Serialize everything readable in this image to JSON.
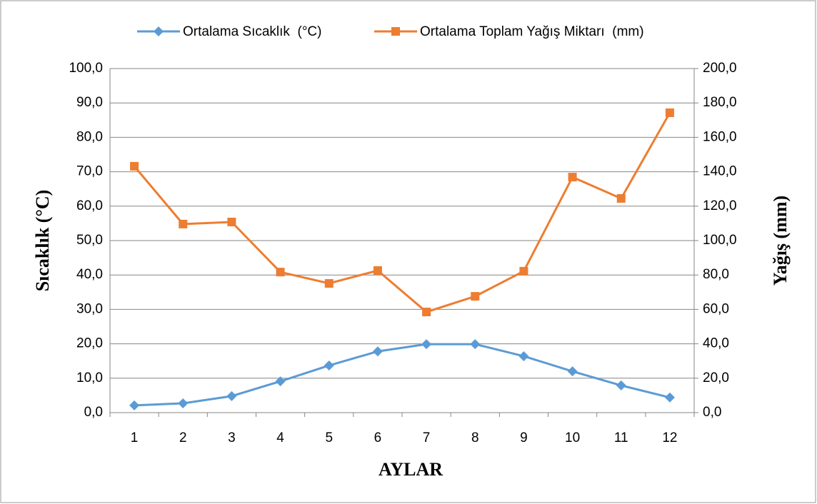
{
  "chart_data": {
    "type": "line",
    "x_label": "AYLAR",
    "y_label": "Sıcaklık (°C)",
    "y2_label": "Yağış (mm)",
    "categories": [
      "1",
      "2",
      "3",
      "4",
      "5",
      "6",
      "7",
      "8",
      "9",
      "10",
      "11",
      "12"
    ],
    "series": [
      {
        "name": "Ortalama Sıcaklık  (°C)",
        "color": "#5b9bd5",
        "marker": "diamond",
        "values": [
          2.1,
          2.7,
          4.8,
          9.1,
          13.7,
          17.8,
          19.9,
          19.9,
          16.4,
          12.0,
          7.9,
          4.4
        ]
      },
      {
        "name": "Ortalama Toplam Yağış Miktarı  (mm)",
        "color": "#ed7d31",
        "marker": "square",
        "axis": "y2",
        "values": [
          143.2,
          109.6,
          110.8,
          81.7,
          75.1,
          82.6,
          58.5,
          67.6,
          82.2,
          136.9,
          124.5,
          174.3
        ]
      }
    ],
    "ylim": [
      0,
      100
    ],
    "yticks": [
      {
        "value": 0,
        "label": "0,0"
      },
      {
        "value": 10,
        "label": "10,0"
      },
      {
        "value": 20,
        "label": "20,0"
      },
      {
        "value": 30,
        "label": "30,0"
      },
      {
        "value": 40,
        "label": "40,0"
      },
      {
        "value": 50,
        "label": "50,0"
      },
      {
        "value": 60,
        "label": "60,0"
      },
      {
        "value": 70,
        "label": "70,0"
      },
      {
        "value": 80,
        "label": "80,0"
      },
      {
        "value": 90,
        "label": "90,0"
      },
      {
        "value": 100,
        "label": "100,0"
      }
    ],
    "y2lim": [
      0,
      200
    ],
    "y2ticks": [
      {
        "value": 0,
        "label": "0,0"
      },
      {
        "value": 20,
        "label": "20,0"
      },
      {
        "value": 40,
        "label": "40,0"
      },
      {
        "value": 60,
        "label": "60,0"
      },
      {
        "value": 80,
        "label": "80,0"
      },
      {
        "value": 100,
        "label": "100,0"
      },
      {
        "value": 120,
        "label": "120,0"
      },
      {
        "value": 140,
        "label": "140,0"
      },
      {
        "value": 160,
        "label": "160,0"
      },
      {
        "value": 180,
        "label": "180,0"
      },
      {
        "value": 200,
        "label": "200,0"
      }
    ],
    "grid": true,
    "legend": "top"
  }
}
